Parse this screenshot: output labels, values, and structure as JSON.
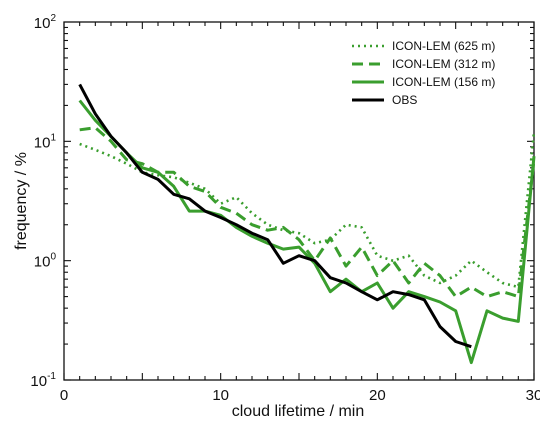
{
  "chart_data": {
    "type": "line",
    "xlabel": "cloud lifetime / min",
    "ylabel": "frequency  / %",
    "xlim": [
      0,
      30
    ],
    "ylim": [
      0.1,
      100
    ],
    "yscale": "log",
    "x_ticks": [
      "0",
      "10",
      "20",
      "30"
    ],
    "y_ticks": [
      {
        "base": "10",
        "exp": "-1",
        "value": 0.1
      },
      {
        "base": "10",
        "exp": "0",
        "value": 1
      },
      {
        "base": "10",
        "exp": "1",
        "value": 10
      },
      {
        "base": "10",
        "exp": "2",
        "value": 100
      }
    ],
    "legend_position": "top-right",
    "series": [
      {
        "name": "ICON-LEM (625 m)",
        "color": "#3a9e2e",
        "style": "dotted",
        "x": [
          1,
          2,
          3,
          4,
          5,
          6,
          7,
          8,
          9,
          10,
          11,
          12,
          13,
          14,
          15,
          16,
          17,
          18,
          19,
          20,
          21,
          22,
          23,
          24,
          25,
          26,
          27,
          28,
          29,
          30
        ],
        "y": [
          9.5,
          8.5,
          7.5,
          6.5,
          5.5,
          5.2,
          5.0,
          4.5,
          4.0,
          3.0,
          3.4,
          2.5,
          2.0,
          1.8,
          1.7,
          1.4,
          1.5,
          2.0,
          1.9,
          1.1,
          1.0,
          1.1,
          0.75,
          0.65,
          0.75,
          1.0,
          0.8,
          0.65,
          0.6,
          12.0
        ]
      },
      {
        "name": "ICON-LEM (312 m)",
        "color": "#3a9e2e",
        "style": "dashed",
        "x": [
          1,
          2,
          3,
          4,
          5,
          6,
          7,
          8,
          9,
          10,
          11,
          12,
          13,
          14,
          15,
          16,
          17,
          18,
          19,
          20,
          21,
          22,
          23,
          24,
          25,
          26,
          27,
          28,
          29,
          30
        ],
        "y": [
          12.5,
          13.0,
          10.0,
          7.0,
          6.5,
          5.5,
          5.5,
          4.2,
          3.8,
          2.8,
          2.5,
          2.0,
          1.8,
          1.9,
          1.5,
          1.0,
          1.55,
          0.9,
          1.3,
          0.75,
          1.0,
          0.65,
          0.95,
          0.75,
          0.5,
          0.6,
          0.5,
          0.55,
          0.5,
          7.0
        ]
      },
      {
        "name": "ICON-LEM (156 m)",
        "color": "#3a9e2e",
        "style": "solid",
        "x": [
          1,
          2,
          3,
          4,
          5,
          6,
          7,
          8,
          9,
          10,
          11,
          12,
          13,
          14,
          15,
          16,
          17,
          18,
          19,
          20,
          21,
          22,
          23,
          24,
          25,
          26,
          27,
          28,
          29,
          30
        ],
        "y": [
          22.0,
          15.0,
          11.0,
          8.0,
          6.0,
          5.5,
          4.2,
          2.6,
          2.6,
          2.4,
          1.9,
          1.6,
          1.4,
          1.25,
          1.3,
          0.95,
          0.55,
          0.7,
          0.55,
          0.65,
          0.4,
          0.55,
          0.5,
          0.45,
          0.38,
          0.14,
          0.38,
          0.33,
          0.31,
          7.5
        ]
      },
      {
        "name": "OBS",
        "color": "#000000",
        "style": "solid",
        "x": [
          1,
          2,
          3,
          4,
          5,
          6,
          7,
          8,
          9,
          10,
          11,
          12,
          13,
          14,
          15,
          16,
          17,
          18,
          19,
          20,
          21,
          22,
          23,
          24,
          25,
          26
        ],
        "y": [
          30.0,
          17.0,
          11.0,
          8.0,
          5.5,
          4.8,
          3.6,
          3.3,
          2.6,
          2.3,
          2.0,
          1.7,
          1.5,
          0.95,
          1.1,
          1.0,
          0.72,
          0.65,
          0.55,
          0.47,
          0.55,
          0.52,
          0.47,
          0.28,
          0.21,
          0.19
        ]
      }
    ]
  }
}
